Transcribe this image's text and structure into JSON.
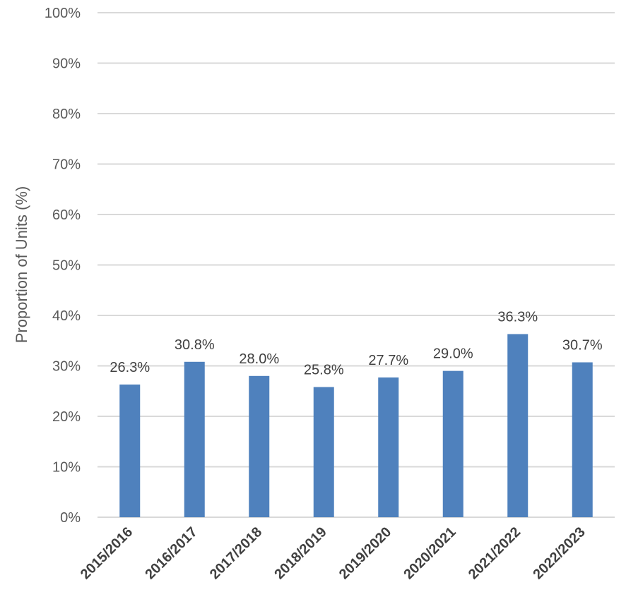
{
  "chart_data": {
    "type": "bar",
    "categories": [
      "2015/2016",
      "2016/2017",
      "2017/2018",
      "2018/2019",
      "2019/2020",
      "2020/2021",
      "2021/2022",
      "2022/2023"
    ],
    "values": [
      26.3,
      30.8,
      28.0,
      25.8,
      27.7,
      29.0,
      36.3,
      30.7
    ],
    "data_labels": [
      "26.3%",
      "30.8%",
      "28.0%",
      "25.8%",
      "27.7%",
      "29.0%",
      "36.3%",
      "30.7%"
    ],
    "title": "",
    "xlabel": "",
    "ylabel": "Proportion of Units (%)",
    "ylim": [
      0,
      100
    ],
    "yticks": [
      0,
      10,
      20,
      30,
      40,
      50,
      60,
      70,
      80,
      90,
      100
    ],
    "ytick_labels": [
      "0%",
      "10%",
      "20%",
      "30%",
      "40%",
      "50%",
      "60%",
      "70%",
      "80%",
      "90%",
      "100%"
    ],
    "grid": true,
    "legend": "none",
    "bar_color": "#4f81bd",
    "grid_color": "#d9d9d9"
  }
}
